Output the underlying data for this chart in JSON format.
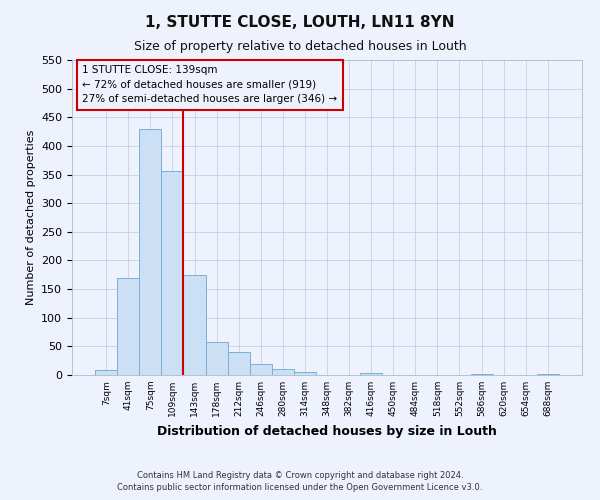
{
  "title": "1, STUTTE CLOSE, LOUTH, LN11 8YN",
  "subtitle": "Size of property relative to detached houses in Louth",
  "xlabel": "Distribution of detached houses by size in Louth",
  "ylabel": "Number of detached properties",
  "bar_labels": [
    "7sqm",
    "41sqm",
    "75sqm",
    "109sqm",
    "143sqm",
    "178sqm",
    "212sqm",
    "246sqm",
    "280sqm",
    "314sqm",
    "348sqm",
    "382sqm",
    "416sqm",
    "450sqm",
    "484sqm",
    "518sqm",
    "552sqm",
    "586sqm",
    "620sqm",
    "654sqm",
    "688sqm"
  ],
  "bar_values": [
    8,
    170,
    430,
    356,
    175,
    57,
    40,
    20,
    10,
    5,
    0,
    0,
    3,
    0,
    0,
    0,
    0,
    2,
    0,
    0,
    2
  ],
  "bar_color": "#cce0f5",
  "bar_edgecolor": "#7aafd4",
  "vline_index": 4,
  "vline_color": "#cc0000",
  "annotation_title": "1 STUTTE CLOSE: 139sqm",
  "annotation_line1": "← 72% of detached houses are smaller (919)",
  "annotation_line2": "27% of semi-detached houses are larger (346) →",
  "annotation_box_edgecolor": "#cc0000",
  "ylim_max": 550,
  "yticks": [
    0,
    50,
    100,
    150,
    200,
    250,
    300,
    350,
    400,
    450,
    500,
    550
  ],
  "footnote1": "Contains HM Land Registry data © Crown copyright and database right 2024.",
  "footnote2": "Contains public sector information licensed under the Open Government Licence v3.0.",
  "bg_color": "#eef2fc",
  "grid_color": "#c8d0e8"
}
